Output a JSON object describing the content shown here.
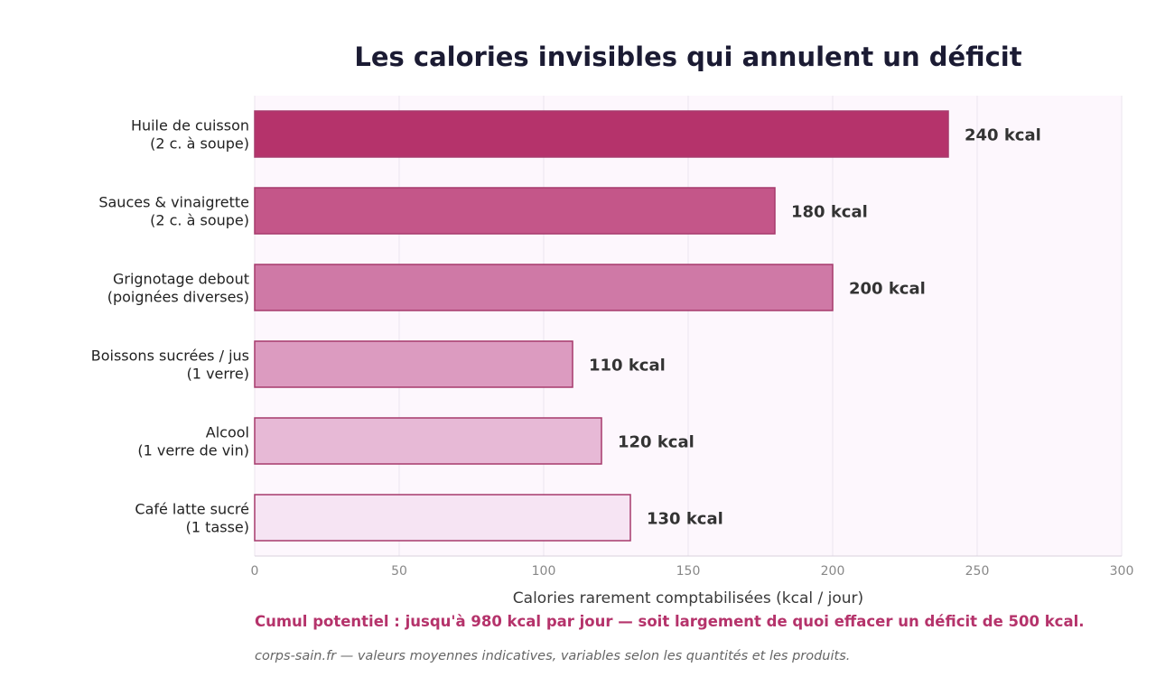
{
  "chart_data": {
    "type": "bar",
    "orientation": "horizontal",
    "title": "Les calories invisibles qui annulent un déficit",
    "xlabel": "Calories rarement comptabilisées (kcal / jour)",
    "ylabel": "",
    "xlim": [
      0,
      300
    ],
    "xticks": [
      "0",
      "50",
      "100",
      "150",
      "200",
      "250",
      "300"
    ],
    "grid": true,
    "categories": [
      [
        "Huile de cuisson",
        "(2 c. à soupe)"
      ],
      [
        "Sauces & vinaigrette",
        "(2 c. à soupe)"
      ],
      [
        "Grignotage debout",
        "(poignées diverses)"
      ],
      [
        "Boissons sucrées / jus",
        "(1 verre)"
      ],
      [
        "Alcool",
        "(1 verre de vin)"
      ],
      [
        "Café latte sucré",
        "(1 tasse)"
      ]
    ],
    "values": [
      240,
      180,
      200,
      110,
      120,
      130
    ],
    "value_labels": [
      "240 kcal",
      "180 kcal",
      "200 kcal",
      "110 kcal",
      "120 kcal",
      "130 kcal"
    ],
    "bar_colors": [
      "#b5336b",
      "#c45689",
      "#cf79a6",
      "#dc9bc0",
      "#e7b9d6",
      "#f6e4f3"
    ],
    "bar_edge_color": "#a63a6c",
    "plot_background": "#fdf7fd"
  },
  "annotations": {
    "summary": "Cumul potentiel : jusqu'à 980 kcal par jour — soit largement de quoi effacer un déficit de 500 kcal.",
    "source": "corps-sain.fr — valeurs moyennes indicatives, variables selon les quantités et les produits."
  }
}
